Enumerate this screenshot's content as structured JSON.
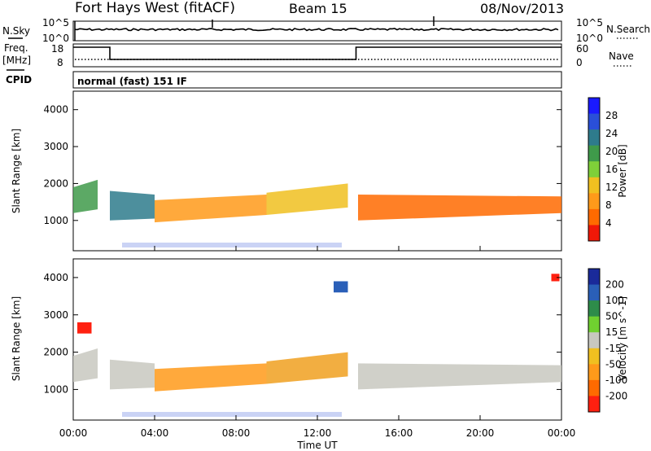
{
  "header": {
    "station": "Fort Hays West (fitACF)",
    "beam": "Beam 15",
    "date": "08/Nov/2013"
  },
  "sky_panel": {
    "left_label": "N.Sky",
    "left_ticks": [
      "10^5",
      "10^0"
    ],
    "right_label": "N.Search",
    "right_ticks": [
      "10^5",
      "10^0"
    ]
  },
  "freq_panel": {
    "left_label_line1": "Freq.",
    "left_label_line2": "[MHz]",
    "left_ticks": [
      "18",
      "8"
    ],
    "right_label": "Nave",
    "right_ticks": [
      "60",
      "0"
    ],
    "freq_steps": [
      {
        "start_h": 0.0,
        "end_h": 1.8,
        "value": 18
      },
      {
        "start_h": 1.8,
        "end_h": 13.9,
        "value": 10.5
      },
      {
        "start_h": 13.9,
        "end_h": 24.0,
        "value": 18
      }
    ]
  },
  "cpid": {
    "label": "CPID",
    "text": "normal (fast) 151 IF"
  },
  "x_axis": {
    "label": "Time UT",
    "ticks": [
      "00:00",
      "04:00",
      "08:00",
      "12:00",
      "16:00",
      "20:00",
      "00:00"
    ]
  },
  "chart_data": [
    {
      "type": "heatmap",
      "title": "",
      "xlabel": "Time UT",
      "ylabel": "Slant Range [km]",
      "xlim": [
        0,
        24
      ],
      "ylim": [
        180,
        4500
      ],
      "yticks": [
        "1000",
        "2000",
        "3000",
        "4000"
      ],
      "colorbar": {
        "label": "Power [dB]",
        "ticks": [
          "4",
          "8",
          "12",
          "16",
          "20",
          "24",
          "28"
        ],
        "colors": [
          "#1a1aff",
          "#2a4fd8",
          "#2e7b8c",
          "#3f9a4a",
          "#7fd039",
          "#f0c020",
          "#ff9a1a",
          "#ff6a00",
          "#f01808"
        ]
      },
      "bands": [
        {
          "t0": 0.0,
          "t1": 1.2,
          "lower_km": [
            1200,
            1300
          ],
          "upper_km": [
            1900,
            2100
          ],
          "color": "#3f9a4a"
        },
        {
          "t0": 1.8,
          "t1": 4.0,
          "lower_km": [
            1000,
            1050
          ],
          "upper_km": [
            1800,
            1700
          ],
          "color": "#2e7b8c"
        },
        {
          "t0": 4.0,
          "t1": 9.5,
          "lower_km": [
            950,
            1150
          ],
          "upper_km": [
            1550,
            1700
          ],
          "color": "#ff9a1a"
        },
        {
          "t0": 9.5,
          "t1": 13.5,
          "lower_km": [
            1150,
            1350
          ],
          "upper_km": [
            1750,
            2000
          ],
          "color": "#f0c020"
        },
        {
          "t0": 14.0,
          "t1": 24.0,
          "lower_km": [
            1000,
            1200
          ],
          "upper_km": [
            1700,
            1650
          ],
          "color": "#ff6a00"
        }
      ]
    },
    {
      "type": "heatmap",
      "title": "",
      "xlabel": "Time UT",
      "ylabel": "Slant Range [km]",
      "xlim": [
        0,
        24
      ],
      "ylim": [
        180,
        4500
      ],
      "yticks": [
        "1000",
        "2000",
        "3000",
        "4000"
      ],
      "colorbar": {
        "label": "Velocity [m s^-1]",
        "ticks": [
          "200",
          "100",
          "50",
          "15",
          "-15",
          "-50",
          "-100",
          "-200"
        ],
        "colors": [
          "#1a2a9a",
          "#2a5fb8",
          "#2e8c4a",
          "#70d030",
          "#c8c8c0",
          "#f0c020",
          "#ff9a1a",
          "#ff6a00",
          "#ff2010"
        ]
      },
      "bands": [
        {
          "t0": 0.0,
          "t1": 1.2,
          "lower_km": [
            1200,
            1300
          ],
          "upper_km": [
            1900,
            2100
          ],
          "color": "#c8c8c0"
        },
        {
          "t0": 1.8,
          "t1": 4.0,
          "lower_km": [
            1000,
            1050
          ],
          "upper_km": [
            1800,
            1700
          ],
          "color": "#c8c8c0"
        },
        {
          "t0": 4.0,
          "t1": 9.5,
          "lower_km": [
            950,
            1150
          ],
          "upper_km": [
            1550,
            1700
          ],
          "color": "#ff9a1a"
        },
        {
          "t0": 9.5,
          "t1": 13.5,
          "lower_km": [
            1150,
            1350
          ],
          "upper_km": [
            1750,
            2000
          ],
          "color": "#f0a020"
        },
        {
          "t0": 14.0,
          "t1": 24.0,
          "lower_km": [
            1000,
            1200
          ],
          "upper_km": [
            1700,
            1650
          ],
          "color": "#c8c8c0"
        }
      ],
      "patches": [
        {
          "t0": 0.2,
          "t1": 0.9,
          "lo_km": 2500,
          "hi_km": 2800,
          "color": "#ff2010"
        },
        {
          "t0": 12.8,
          "t1": 13.5,
          "lo_km": 3600,
          "hi_km": 3900,
          "color": "#2a5fb8"
        },
        {
          "t0": 23.5,
          "t1": 23.9,
          "lo_km": 3900,
          "hi_km": 4100,
          "color": "#ff2010"
        }
      ]
    }
  ]
}
